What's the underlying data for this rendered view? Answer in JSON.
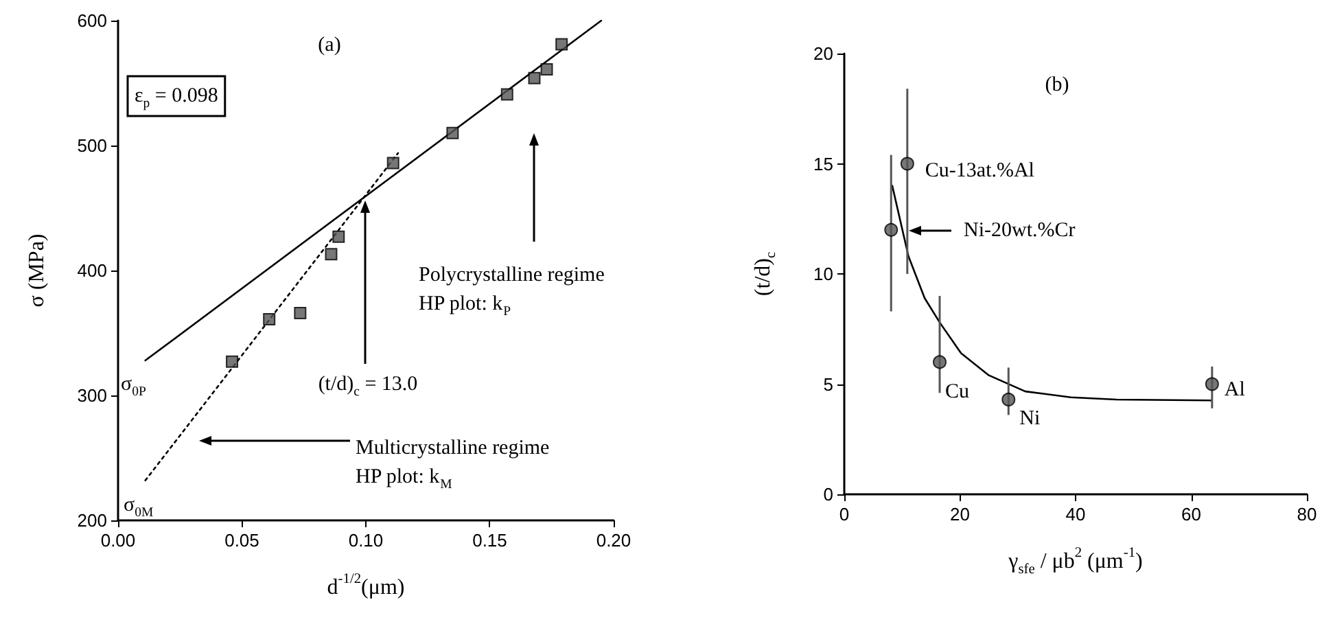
{
  "chart_data": [
    {
      "type": "scatter",
      "xlabel": "d$^{-1/2}$(μm)",
      "ylabel": "σ (MPa)",
      "annotations": [
        "(a)",
        "ε$_{p}$ = 0.098",
        "σ$_{0P}$",
        "σ$_{0M}$",
        "(t/d)$_{c}$ = 13.0",
        "Polycrystalline regime\nHP plot: k$_{P}$",
        "Multicrystalline regime\nHP plot: k$_{M}$"
      ],
      "xlim": [
        0,
        0.2
      ],
      "xticks": [
        {
          "value": 0,
          "label": "0.00"
        },
        {
          "value": 0.05,
          "label": "0.05"
        },
        {
          "value": 0.1,
          "label": "0.10"
        },
        {
          "value": 0.15,
          "label": "0.15"
        },
        {
          "value": 0.2,
          "label": "0.20"
        }
      ],
      "ylim": [
        200,
        600
      ],
      "yticks": [
        200,
        300,
        400,
        500,
        600
      ],
      "series": [
        {
          "type": "scatter",
          "marker": "square",
          "color": "#555555",
          "x": [
            0.046,
            0.061,
            0.0735,
            0.086,
            0.089,
            0.111,
            0.135,
            0.157,
            0.168,
            0.173,
            0.179
          ],
          "values": [
            327,
            361,
            366,
            413,
            427,
            486,
            510,
            541,
            554,
            561,
            581
          ]
        },
        {
          "type": "line",
          "marker": "none",
          "line_style": "solid",
          "color": "#000000",
          "x": [
            0.011,
            0.195
          ],
          "values": [
            328,
            600
          ]
        },
        {
          "type": "line",
          "marker": "none",
          "line_style": "dotted",
          "color": "#000000",
          "x": [
            0.011,
            0.113
          ],
          "values": [
            232,
            494
          ]
        }
      ]
    },
    {
      "type": "scatter",
      "xlabel": "γ$_{sfe}$ / μb$^{2}$ (μm$^{-1}$)",
      "ylabel": "(t/d)$_{c}$",
      "annotations": [
        "(b)",
        {
          "text": "Cu-13at.%Al",
          "x": 10.9,
          "y": 15
        },
        "Ni-20wt.%Cr",
        {
          "text": "Cu",
          "x": 16.5,
          "y": 6
        },
        {
          "text": "Ni",
          "x": 28.4,
          "y": 4.3
        },
        {
          "text": "Al",
          "x": 63.6,
          "y": 5
        }
      ],
      "xlim": [
        0,
        80
      ],
      "xticks": [
        0,
        20,
        40,
        60,
        80
      ],
      "ylim": [
        0,
        20
      ],
      "yticks": [
        0,
        5,
        10,
        15,
        20
      ],
      "series": [
        {
          "type": "scatter",
          "marker": "circle",
          "color": "#555555",
          "x": [
            8.1,
            10.9,
            16.5,
            28.4,
            63.6
          ],
          "values": [
            12,
            15,
            6,
            4.3,
            5
          ],
          "errors": [
            [
              8.3,
              15.4
            ],
            [
              10,
              18.4
            ],
            [
              4.6,
              9
            ],
            [
              3.6,
              5.75
            ],
            [
              3.9,
              5.8
            ]
          ]
        },
        {
          "type": "line",
          "marker": "none",
          "line_style": "solid",
          "color": "#000000",
          "x": [
            8.3,
            11.1,
            13.9,
            16.5,
            20.2,
            25,
            31.3,
            39.2,
            47.1,
            63.4
          ],
          "values": [
            14,
            10.8,
            8.9,
            7.8,
            6.4,
            5.4,
            4.67,
            4.4,
            4.3,
            4.26
          ]
        }
      ]
    }
  ]
}
